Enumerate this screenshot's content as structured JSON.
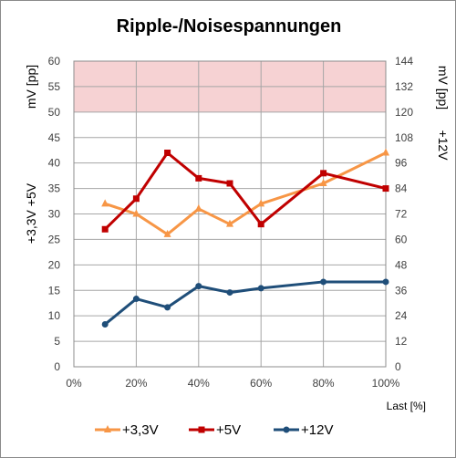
{
  "chart_data": {
    "type": "line",
    "title": "Ripple-/Noisespannungen",
    "xlabel": "Last [%]",
    "ylabel_left": "+3,3V +5V mV [pp]",
    "ylabel_left_lines": [
      "+3,3V +5V",
      "mV [pp]"
    ],
    "ylabel_right": "mV [pp] +12V",
    "ylabel_right_lines": [
      "mV [pp]",
      "+12V"
    ],
    "x_ticks": [
      "0%",
      "20%",
      "40%",
      "60%",
      "80%",
      "100%"
    ],
    "x_tick_values": [
      0,
      20,
      40,
      60,
      80,
      100
    ],
    "xlim": [
      0,
      100
    ],
    "ylim_left": [
      0,
      60
    ],
    "ylim_right": [
      0,
      144
    ],
    "y_left_ticks": [
      0,
      5,
      10,
      15,
      20,
      25,
      30,
      35,
      40,
      45,
      50,
      55,
      60
    ],
    "y_right_ticks": [
      0,
      12,
      24,
      36,
      48,
      60,
      72,
      84,
      96,
      108,
      120,
      132,
      144
    ],
    "limit_band_left": [
      50,
      60
    ],
    "limit_band_color": "#f6d2d3",
    "grid": true,
    "legend_position": "bottom",
    "series": [
      {
        "name": "+3,3V",
        "axis": "left",
        "marker": "triangle",
        "color": "#f79646",
        "x": [
          10,
          20,
          30,
          40,
          50,
          60,
          80,
          100
        ],
        "values": [
          32,
          30,
          26,
          31,
          28,
          32,
          36,
          42
        ]
      },
      {
        "name": "+5V",
        "axis": "left",
        "marker": "square",
        "color": "#c00000",
        "x": [
          10,
          20,
          30,
          40,
          50,
          60,
          80,
          100
        ],
        "values": [
          27,
          33,
          42,
          37,
          36,
          28,
          38,
          35
        ]
      },
      {
        "name": "+12V",
        "axis": "right",
        "marker": "circle",
        "color": "#1f4e79",
        "x": [
          10,
          20,
          30,
          40,
          50,
          60,
          80,
          100
        ],
        "values": [
          20,
          32,
          28,
          38,
          35,
          37,
          40,
          40
        ]
      }
    ]
  }
}
